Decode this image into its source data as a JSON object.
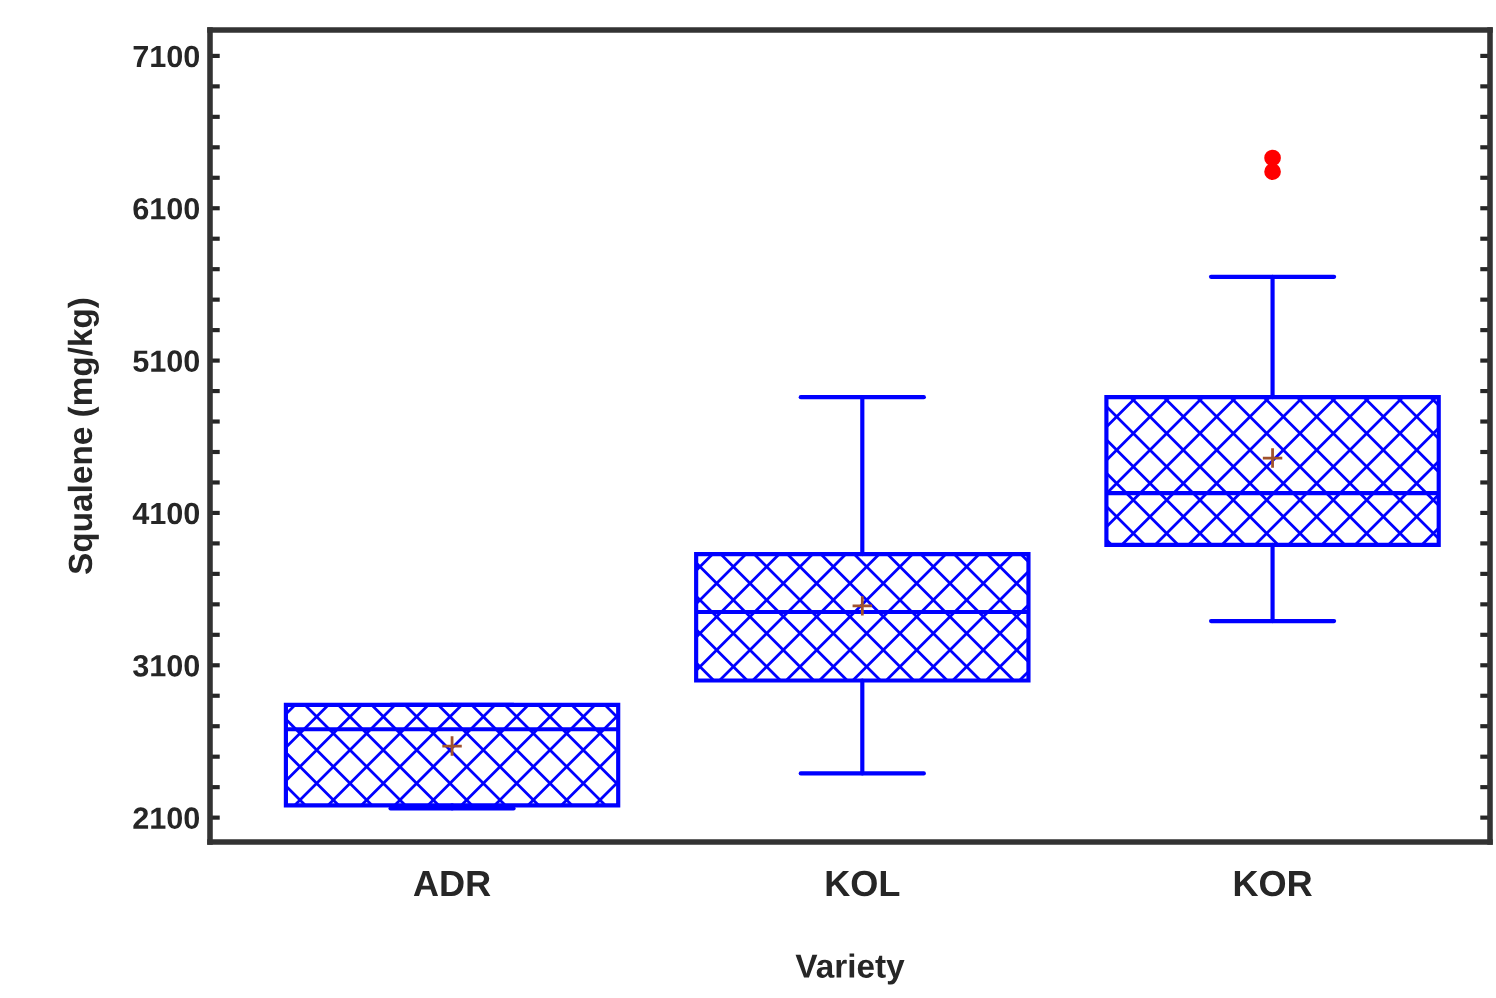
{
  "chart_data": {
    "type": "box",
    "xlabel": "Variety",
    "ylabel": "Squalene (mg/kg)",
    "categories": [
      "ADR",
      "KOL",
      "KOR"
    ],
    "series": [
      {
        "color": "#0000ff",
        "boxes": [
          {
            "low": 2160,
            "q1": 2180,
            "median": 2680,
            "q3": 2840,
            "high": 2840,
            "mean": 2570
          },
          {
            "low": 2390,
            "q1": 3000,
            "median": 3450,
            "q3": 3830,
            "high": 4860,
            "mean": 3490
          },
          {
            "low": 3390,
            "q1": 3890,
            "median": 4230,
            "q3": 4860,
            "high": 5650,
            "mean": 4460,
            "outliers": [
              6430,
              6340
            ]
          }
        ]
      }
    ],
    "ylim": [
      1940,
      7270
    ],
    "yticks": [
      2100,
      {
        "value": 2300,
        "label": null
      },
      {
        "value": 2500,
        "label": null
      },
      {
        "value": 2700,
        "label": null
      },
      {
        "value": 2900,
        "label": null
      },
      3100,
      {
        "value": 3300,
        "label": null
      },
      {
        "value": 3500,
        "label": null
      },
      {
        "value": 3700,
        "label": null
      },
      {
        "value": 3900,
        "label": null
      },
      4100,
      {
        "value": 4300,
        "label": null
      },
      {
        "value": 4500,
        "label": null
      },
      {
        "value": 4700,
        "label": null
      },
      {
        "value": 4900,
        "label": null
      },
      5100,
      {
        "value": 5300,
        "label": null
      },
      {
        "value": 5500,
        "label": null
      },
      {
        "value": 5700,
        "label": null
      },
      {
        "value": 5900,
        "label": null
      },
      6100,
      {
        "value": 6300,
        "label": null
      },
      {
        "value": 6500,
        "label": null
      },
      {
        "value": 6700,
        "label": null
      },
      {
        "value": 6900,
        "label": null
      },
      7100
    ],
    "grid": false
  }
}
